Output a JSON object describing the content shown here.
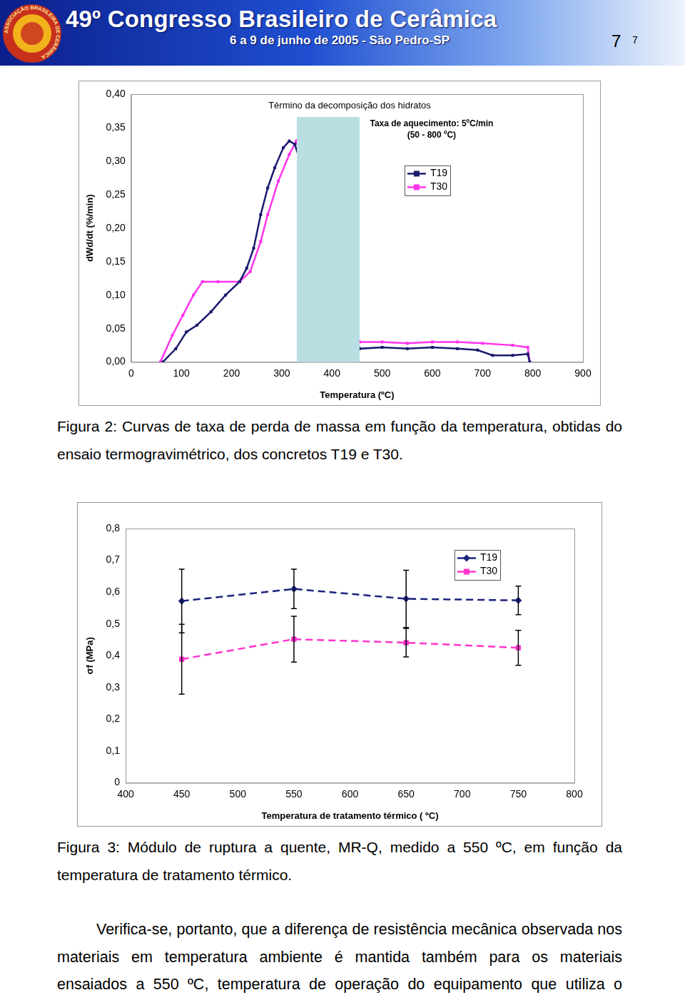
{
  "header": {
    "logo_text": "ASSOCIAÇÃO BRASILEIRA DE CERÂMICA",
    "title": "49º Congresso Brasileiro de Cerâmica",
    "subtitle": "6 a 9 de junho de 2005 - São Pedro-SP"
  },
  "page_number": [
    "7",
    "7"
  ],
  "chart_data": [
    {
      "type": "line",
      "annotations": [
        "Término da decomposição dos hidratos",
        "Taxa de aquecimento: 5ºC/min",
        "(50 - 800 ºC)"
      ],
      "x_label": "Temperatura (ºC)",
      "y_label": "dWd/dt (%/min)",
      "xlim": [
        0,
        900
      ],
      "xticks": [
        0,
        100,
        200,
        300,
        400,
        500,
        600,
        700,
        800,
        900
      ],
      "ylim": [
        0,
        0.4
      ],
      "yticks": [
        {
          "value": 0,
          "label": "0,00"
        },
        {
          "value": 0.05,
          "label": "0,05"
        },
        {
          "value": 0.1,
          "label": "0,10"
        },
        {
          "value": 0.15,
          "label": "0,15"
        },
        {
          "value": 0.2,
          "label": "0,20"
        },
        {
          "value": 0.25,
          "label": "0,25"
        },
        {
          "value": 0.3,
          "label": "0,30"
        },
        {
          "value": 0.35,
          "label": "0,35"
        },
        {
          "value": 0.4,
          "label": "0,40"
        }
      ],
      "grid": false,
      "legend": "upper right",
      "band": {
        "x": [
          330,
          455
        ],
        "y": [
          0,
          0.366
        ],
        "color": "#b9dfe3"
      },
      "series": [
        {
          "name": "T19",
          "color": "#1a1a6e",
          "marker": "square",
          "line_style": "solid",
          "x": [
            63,
            89,
            110,
            131,
            159,
            188,
            216,
            230,
            244,
            258,
            272,
            286,
            303,
            315,
            326,
            455,
            500,
            550,
            600,
            650,
            690,
            720,
            760,
            790,
            794
          ],
          "values": [
            0,
            0.02,
            0.045,
            0.055,
            0.075,
            0.1,
            0.12,
            0.14,
            0.17,
            0.22,
            0.26,
            0.29,
            0.32,
            0.33,
            0.325,
            0.02,
            0.022,
            0.02,
            0.022,
            0.02,
            0.018,
            0.01,
            0.01,
            0.012,
            0
          ]
        },
        {
          "name": "T30",
          "color": "#ff33ee",
          "marker": "square",
          "line_style": "solid",
          "x": [
            58,
            82,
            103,
            124,
            142,
            173,
            216,
            237,
            258,
            272,
            293,
            315,
            329,
            455,
            500,
            550,
            600,
            650,
            700,
            760,
            790,
            794
          ],
          "values": [
            0,
            0.04,
            0.07,
            0.1,
            0.12,
            0.12,
            0.12,
            0.135,
            0.18,
            0.22,
            0.27,
            0.31,
            0.33,
            0.03,
            0.03,
            0.028,
            0.03,
            0.03,
            0.028,
            0.025,
            0.022,
            0
          ]
        }
      ]
    },
    {
      "type": "line",
      "x_label": "Temperatura de tratamento térmico ( ºC)",
      "y_label": "σf (MPa)",
      "xlim": [
        400,
        800
      ],
      "xticks": [
        400,
        450,
        500,
        550,
        600,
        650,
        700,
        750,
        800
      ],
      "ylim": [
        0,
        0.8
      ],
      "yticks": [
        0,
        {
          "value": 0.1,
          "label": "0,1"
        },
        {
          "value": 0.2,
          "label": "0,2"
        },
        {
          "value": 0.3,
          "label": "0,3"
        },
        {
          "value": 0.4,
          "label": "0,4"
        },
        {
          "value": 0.5,
          "label": "0,5"
        },
        {
          "value": 0.6,
          "label": "0,6"
        },
        {
          "value": 0.7,
          "label": "0,7"
        },
        {
          "value": 0.8,
          "label": "0,8"
        }
      ],
      "grid": false,
      "legend": "upper right",
      "series": [
        {
          "name": "T19",
          "color": "#1a237e",
          "marker": "diamond",
          "line_style": "dashed",
          "x": [
            450,
            550,
            650,
            750
          ],
          "values": [
            0.572,
            0.61,
            0.579,
            0.574
          ],
          "errors": [
            0.1,
            0.062,
            0.09,
            0.045
          ]
        },
        {
          "name": "T30",
          "color": "#ff33cc",
          "marker": "square",
          "line_style": "dashed",
          "x": [
            450,
            550,
            650,
            750
          ],
          "values": [
            0.389,
            0.452,
            0.441,
            0.425
          ],
          "errors": [
            0.11,
            0.072,
            0.045,
            0.055
          ]
        }
      ]
    }
  ],
  "captions": [
    "Figura 2: Curvas de taxa de perda de massa em função da temperatura, obtidas do ensaio termogravimétrico, dos concretos T19 e T30.",
    "Figura 3: Módulo de ruptura a quente, MR-Q, medido a 550 ºC, em função da temperatura de tratamento térmico."
  ],
  "paragraph": "Verifica-se, portanto, que a diferença de resistência mecânica observada nos materiais em temperatura ambiente é mantida também para os materiais ensaiados a 550 ºC, temperatura de operação do equipamento que utiliza o"
}
